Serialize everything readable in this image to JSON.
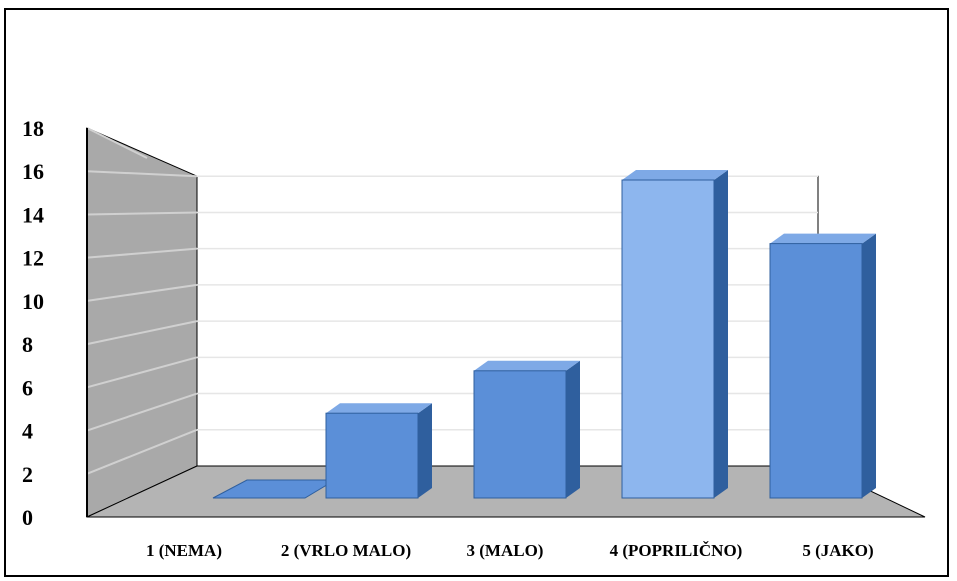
{
  "chart_data": {
    "type": "bar",
    "categories": [
      "1 (NEMA)",
      "2 (VRLO MALO)",
      "3 (MALO)",
      "4 (POPRILIČNO)",
      "5 (JAKO)"
    ],
    "values": [
      0,
      4,
      6,
      15,
      12
    ],
    "ylim": [
      0,
      18
    ],
    "yticks": [
      0,
      2,
      4,
      6,
      8,
      10,
      12,
      14,
      16,
      18
    ],
    "grid": true,
    "style": "3d",
    "colors": {
      "bar_front": "#5b8fd8",
      "bar_front_light": "#8db6ee",
      "bar_side": "#2f5f9e",
      "bar_top": "#7ea9e6",
      "wall": "#a9a9a9",
      "floor": "#b4b4b4",
      "gridline": "#e6e6e6"
    }
  }
}
